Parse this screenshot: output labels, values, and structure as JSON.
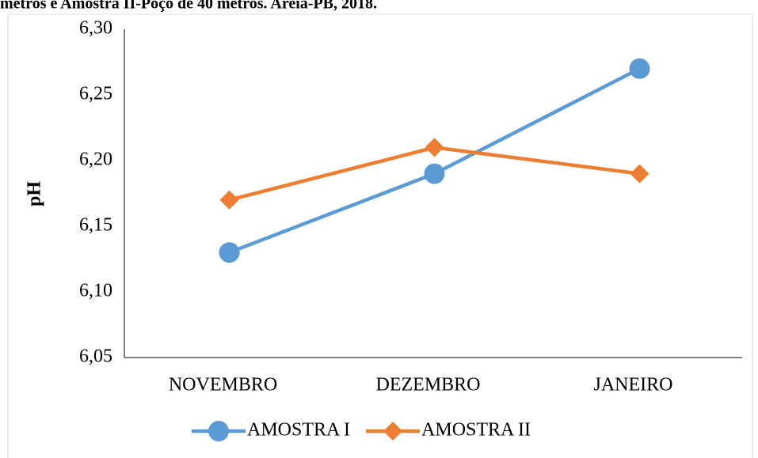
{
  "caption": "metros e Amostra II-Poço de 40 metros. Areia-PB, 2018.",
  "chart_data": {
    "type": "line",
    "ylabel": "pH",
    "categories": [
      "NOVEMBRO",
      "DEZEMBRO",
      "JANEIRO"
    ],
    "series": [
      {
        "name": "AMOSTRA I",
        "color": "#5b9bd5",
        "marker": "circle",
        "values": [
          6.13,
          6.19,
          6.27
        ]
      },
      {
        "name": "AMOSTRA II",
        "color": "#ed7d31",
        "marker": "diamond",
        "values": [
          6.17,
          6.21,
          6.19
        ]
      }
    ],
    "ylim": [
      6.05,
      6.3
    ],
    "yticks": [
      {
        "value": 6.05,
        "label": "6,05"
      },
      {
        "value": 6.1,
        "label": "6,10"
      },
      {
        "value": 6.15,
        "label": "6,15"
      },
      {
        "value": 6.2,
        "label": "6,20"
      },
      {
        "value": 6.25,
        "label": "6,25"
      },
      {
        "value": 6.3,
        "label": "6,30"
      }
    ],
    "grid": false,
    "legend": "bottom"
  }
}
